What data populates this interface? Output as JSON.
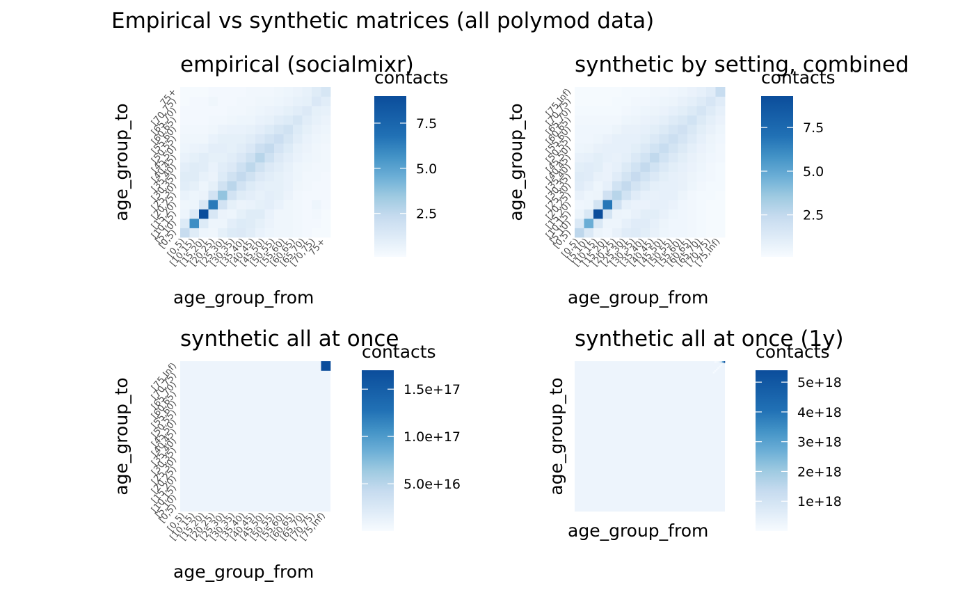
{
  "figure": {
    "title": "Empirical vs synthetic matrices (all polymod data)"
  },
  "chart_data": [
    {
      "type": "heatmap",
      "title": "empirical (socialmixr)",
      "xlabel": "age_group_from",
      "ylabel": "age_group_to",
      "legend_title": "contacts",
      "legend_ticks": [
        "2.5",
        "5.0",
        "7.5"
      ],
      "legend_tick_values": [
        2.5,
        5.0,
        7.5
      ],
      "legend_range": [
        0.1,
        9.0
      ],
      "categories": [
        "[0,5)",
        "[5,10)",
        "[10,15)",
        "[15,20)",
        "[20,25)",
        "[25,30)",
        "[30,35)",
        "[35,40)",
        "[40,45)",
        "[45,50)",
        "[50,55)",
        "[55,60)",
        "[60,65)",
        "[65,70)",
        "[70,75)",
        "75+"
      ],
      "x_tick_labels": [
        "[0,5)",
        "[10,15)",
        "[15,20)",
        "[20,25)",
        "[25,30)",
        "[30,35)",
        "[35,40)",
        "[40,45)",
        "[45,50)",
        "[50,55)",
        "[55,60)",
        "[60,65)",
        "[65,70)",
        "[70,75)",
        "75+"
      ],
      "y_tick_labels": [
        "[0,5)",
        "[5,10)",
        "[10,15)",
        "[15,20)",
        "[20,25)",
        "[25,30)",
        "[30,35)",
        "[35,40)",
        "[40,45)",
        "[45,50)",
        "[50,55)",
        "[55,60)",
        "[60,65)",
        "[65,70)",
        "[70,75)",
        "75+"
      ],
      "values": [
        [
          2.6,
          1.3,
          0.6,
          0.5,
          1.0,
          1.4,
          1.5,
          1.2,
          0.8,
          0.6,
          0.5,
          0.5,
          0.4,
          0.3,
          0.2,
          0.2
        ],
        [
          1.4,
          6.6,
          1.4,
          0.6,
          0.6,
          1.1,
          1.4,
          1.3,
          1.0,
          0.7,
          0.5,
          0.5,
          0.4,
          0.3,
          0.3,
          0.2
        ],
        [
          0.6,
          1.5,
          9.0,
          1.7,
          0.7,
          0.6,
          1.0,
          1.3,
          1.3,
          0.8,
          0.5,
          0.5,
          0.4,
          0.3,
          0.4,
          0.2
        ],
        [
          0.5,
          0.6,
          1.7,
          7.4,
          2.0,
          1.0,
          0.7,
          0.8,
          1.0,
          1.1,
          0.8,
          0.5,
          0.4,
          0.3,
          0.6,
          0.3
        ],
        [
          0.8,
          0.6,
          0.7,
          2.0,
          4.2,
          2.0,
          1.3,
          1.1,
          0.9,
          1.1,
          1.0,
          0.7,
          0.4,
          0.3,
          0.3,
          0.3
        ],
        [
          1.2,
          1.0,
          0.6,
          1.0,
          2.1,
          3.0,
          2.0,
          1.4,
          1.1,
          1.0,
          1.0,
          0.8,
          0.5,
          0.4,
          0.3,
          0.3
        ],
        [
          1.3,
          1.3,
          0.9,
          0.7,
          1.4,
          2.1,
          2.7,
          2.1,
          1.5,
          1.2,
          1.0,
          0.8,
          0.6,
          0.4,
          0.4,
          0.3
        ],
        [
          1.1,
          1.3,
          1.2,
          0.8,
          1.2,
          1.5,
          2.2,
          2.9,
          2.1,
          1.5,
          1.2,
          0.9,
          0.6,
          0.5,
          0.4,
          0.4
        ],
        [
          0.8,
          1.0,
          1.2,
          1.0,
          1.0,
          1.2,
          1.6,
          2.2,
          3.1,
          2.2,
          1.5,
          1.1,
          0.8,
          0.6,
          0.5,
          0.4
        ],
        [
          0.6,
          0.7,
          0.8,
          1.1,
          1.1,
          1.0,
          1.2,
          1.6,
          2.3,
          2.7,
          1.9,
          1.4,
          0.9,
          0.7,
          0.5,
          0.4
        ],
        [
          0.5,
          0.5,
          0.5,
          0.8,
          1.0,
          1.0,
          1.0,
          1.2,
          1.6,
          2.0,
          2.4,
          1.8,
          1.2,
          0.8,
          0.6,
          0.5
        ],
        [
          0.4,
          0.4,
          0.4,
          0.5,
          0.7,
          0.8,
          0.8,
          0.9,
          1.1,
          1.4,
          1.8,
          2.1,
          1.4,
          1.0,
          0.7,
          0.6
        ],
        [
          0.3,
          0.3,
          0.3,
          0.4,
          0.4,
          0.5,
          0.6,
          0.6,
          0.8,
          0.9,
          1.2,
          1.4,
          1.8,
          1.2,
          0.9,
          0.7
        ],
        [
          0.3,
          0.3,
          0.3,
          0.3,
          0.3,
          0.4,
          0.4,
          0.5,
          0.6,
          0.7,
          0.8,
          1.0,
          1.2,
          1.5,
          1.0,
          0.9
        ],
        [
          0.2,
          0.3,
          0.3,
          0.5,
          0.3,
          0.3,
          0.4,
          0.4,
          0.5,
          0.5,
          0.6,
          0.7,
          0.9,
          1.0,
          1.6,
          1.2
        ],
        [
          0.2,
          0.2,
          0.2,
          0.3,
          0.3,
          0.3,
          0.3,
          0.4,
          0.4,
          0.4,
          0.5,
          0.6,
          0.7,
          0.9,
          1.3,
          1.8
        ]
      ]
    },
    {
      "type": "heatmap",
      "title": "synthetic by setting, combined",
      "xlabel": "age_group_from",
      "ylabel": "age_group_to",
      "legend_title": "contacts",
      "legend_ticks": [
        "2.5",
        "5.0",
        "7.5"
      ],
      "legend_tick_values": [
        2.5,
        5.0,
        7.5
      ],
      "legend_range": [
        0.1,
        9.3
      ],
      "categories": [
        "[0,5)",
        "[5,10)",
        "[10,15)",
        "[15,20)",
        "[20,25)",
        "[25,30)",
        "[30,35)",
        "[35,40)",
        "[40,45)",
        "[45,50)",
        "[50,55)",
        "[55,60)",
        "[60,65)",
        "[65,70)",
        "[70,75)",
        "[75,Inf)"
      ],
      "x_tick_labels": [
        "[0,5)",
        "[5,10)",
        "[10,15)",
        "[15,20)",
        "[20,25)",
        "[25,30)",
        "[30,35)",
        "[35,40)",
        "[40,45)",
        "[45,50)",
        "[50,55)",
        "[55,60)",
        "[60,65)",
        "[65,70)",
        "[70,75)",
        "[75,Inf)"
      ],
      "y_tick_labels": [
        "[0,5)",
        "[5,10)",
        "[10,15)",
        "[15,20)",
        "[20,25)",
        "[25,30)",
        "[30,35)",
        "[35,40)",
        "[40,45)",
        "[45,50)",
        "[50,55)",
        "[55,60)",
        "[60,65)",
        "[65,70)",
        "[70,75)",
        "[75,Inf)"
      ],
      "values": [
        [
          3.0,
          1.6,
          0.7,
          0.5,
          0.9,
          1.3,
          1.4,
          1.2,
          0.9,
          0.6,
          0.5,
          0.5,
          0.4,
          0.3,
          0.2,
          0.2
        ],
        [
          1.6,
          5.4,
          1.7,
          0.6,
          0.6,
          1.0,
          1.3,
          1.3,
          1.0,
          0.7,
          0.5,
          0.5,
          0.4,
          0.3,
          0.2,
          0.2
        ],
        [
          0.7,
          1.7,
          9.3,
          2.0,
          0.7,
          0.6,
          0.9,
          1.2,
          1.2,
          0.9,
          0.6,
          0.5,
          0.4,
          0.3,
          0.2,
          0.2
        ],
        [
          0.5,
          0.6,
          2.0,
          7.8,
          2.2,
          1.0,
          0.8,
          0.8,
          1.0,
          1.0,
          0.8,
          0.5,
          0.4,
          0.3,
          0.2,
          0.2
        ],
        [
          0.9,
          0.6,
          0.7,
          2.2,
          3.2,
          2.1,
          1.3,
          1.0,
          0.9,
          1.0,
          1.0,
          0.7,
          0.4,
          0.3,
          0.3,
          0.2
        ],
        [
          1.3,
          1.0,
          0.6,
          1.0,
          2.1,
          2.8,
          2.0,
          1.5,
          1.1,
          1.0,
          1.0,
          0.9,
          0.6,
          0.4,
          0.3,
          0.3
        ],
        [
          1.4,
          1.3,
          0.9,
          0.8,
          1.3,
          2.0,
          2.7,
          2.1,
          1.6,
          1.2,
          1.0,
          0.9,
          0.7,
          0.5,
          0.4,
          0.3
        ],
        [
          1.2,
          1.3,
          1.2,
          0.8,
          1.0,
          1.5,
          2.1,
          2.8,
          2.1,
          1.6,
          1.2,
          1.0,
          0.8,
          0.6,
          0.4,
          0.3
        ],
        [
          0.9,
          1.0,
          1.2,
          1.0,
          0.9,
          1.1,
          1.6,
          2.1,
          2.9,
          2.1,
          1.6,
          1.2,
          0.9,
          0.7,
          0.5,
          0.4
        ],
        [
          0.6,
          0.7,
          0.9,
          1.0,
          1.0,
          1.0,
          1.2,
          1.6,
          2.1,
          2.6,
          2.0,
          1.5,
          1.1,
          0.8,
          0.6,
          0.4
        ],
        [
          0.5,
          0.5,
          0.6,
          0.8,
          1.0,
          1.0,
          1.0,
          1.2,
          1.6,
          2.0,
          2.4,
          1.9,
          1.4,
          1.0,
          0.7,
          0.5
        ],
        [
          0.5,
          0.5,
          0.5,
          0.5,
          0.7,
          0.9,
          0.9,
          1.0,
          1.2,
          1.5,
          1.9,
          2.2,
          1.7,
          1.2,
          0.9,
          0.6
        ],
        [
          0.4,
          0.4,
          0.4,
          0.4,
          0.4,
          0.6,
          0.7,
          0.8,
          0.9,
          1.1,
          1.4,
          1.7,
          2.1,
          1.5,
          1.1,
          0.8
        ],
        [
          0.3,
          0.3,
          0.3,
          0.3,
          0.3,
          0.4,
          0.5,
          0.6,
          0.7,
          0.8,
          1.0,
          1.2,
          1.5,
          1.9,
          1.4,
          1.0
        ],
        [
          0.2,
          0.2,
          0.2,
          0.2,
          0.3,
          0.3,
          0.4,
          0.4,
          0.5,
          0.6,
          0.7,
          0.9,
          1.1,
          1.4,
          1.8,
          1.3
        ],
        [
          0.2,
          0.2,
          0.2,
          0.2,
          0.2,
          0.3,
          0.3,
          0.3,
          0.4,
          0.4,
          0.5,
          0.6,
          0.8,
          1.0,
          1.3,
          2.6
        ]
      ]
    },
    {
      "type": "heatmap",
      "title": "synthetic all at once",
      "xlabel": "age_group_from",
      "ylabel": "age_group_to",
      "legend_title": "contacts",
      "legend_ticks": [
        "5.0e+16",
        "1.0e+17",
        "1.5e+17"
      ],
      "legend_tick_values": [
        5e+16,
        1e+17,
        1.5e+17
      ],
      "legend_range": [
        0,
        1.7e+17
      ],
      "categories": [
        "[0,5)",
        "[5,10)",
        "[10,15)",
        "[15,20)",
        "[20,25)",
        "[25,30)",
        "[30,35)",
        "[35,40)",
        "[40,45)",
        "[45,50)",
        "[50,55)",
        "[55,60)",
        "[60,65)",
        "[65,70)",
        "[70,75)",
        "[75,Inf)"
      ],
      "x_tick_labels": [
        "[0,5)",
        "[10,15)",
        "[15,20)",
        "[20,25)",
        "[25,30)",
        "[30,35)",
        "[35,40)",
        "[40,45)",
        "[45,50)",
        "[50,55)",
        "[55,60)",
        "[60,65)",
        "[65,70)",
        "[70,75)",
        "[75,Inf)"
      ],
      "y_tick_labels": [
        "[0,5)",
        "[5,10)",
        "[10,15)",
        "[15,20)",
        "[20,25)",
        "[25,30)",
        "[30,35)",
        "[35,40)",
        "[40,45)",
        "[45,50)",
        "[50,55)",
        "[55,60)",
        "[60,65)",
        "[65,70)",
        "[70,75)",
        "[75,Inf)"
      ],
      "background_value": 0,
      "cells": [
        {
          "row": 15,
          "col": 15,
          "value": 1.7e+17
        }
      ]
    },
    {
      "type": "heatmap",
      "title": "synthetic all at once (1y)",
      "xlabel": "age_group_from",
      "ylabel": "age_group_to",
      "legend_title": "contacts",
      "legend_ticks": [
        "1e+18",
        "2e+18",
        "3e+18",
        "4e+18",
        "5e+18"
      ],
      "legend_tick_values": [
        1e+18,
        2e+18,
        3e+18,
        4e+18,
        5e+18
      ],
      "legend_range": [
        0,
        5.4e+18
      ],
      "grid_size": 100,
      "x_tick_labels": [],
      "y_tick_labels": [],
      "background_value": 0,
      "cells": [
        {
          "row": 99,
          "col": 99,
          "value": 5.4e+18
        },
        {
          "row": 99,
          "col": 98,
          "value": 3.2e+18
        },
        {
          "row": 99,
          "col": 97,
          "value": 1.6e+18
        },
        {
          "row": 99,
          "col": 96,
          "value": 7e+17
        },
        {
          "row": 99,
          "col": 95,
          "value": 3e+17
        },
        {
          "row": 99,
          "col": 94,
          "value": 1.5e+17
        },
        {
          "row": 99,
          "col": 93,
          "value": 8e+16
        },
        {
          "row": 98,
          "col": 98,
          "value": 2e+17
        },
        {
          "row": 97,
          "col": 97,
          "value": 1.2e+17
        },
        {
          "row": 96,
          "col": 96,
          "value": 8e+16
        },
        {
          "row": 95,
          "col": 95,
          "value": 5e+16
        },
        {
          "row": 94,
          "col": 94,
          "value": 4e+16
        },
        {
          "row": 93,
          "col": 93,
          "value": 3e+16
        },
        {
          "row": 92,
          "col": 92,
          "value": 2e+16
        }
      ]
    }
  ]
}
